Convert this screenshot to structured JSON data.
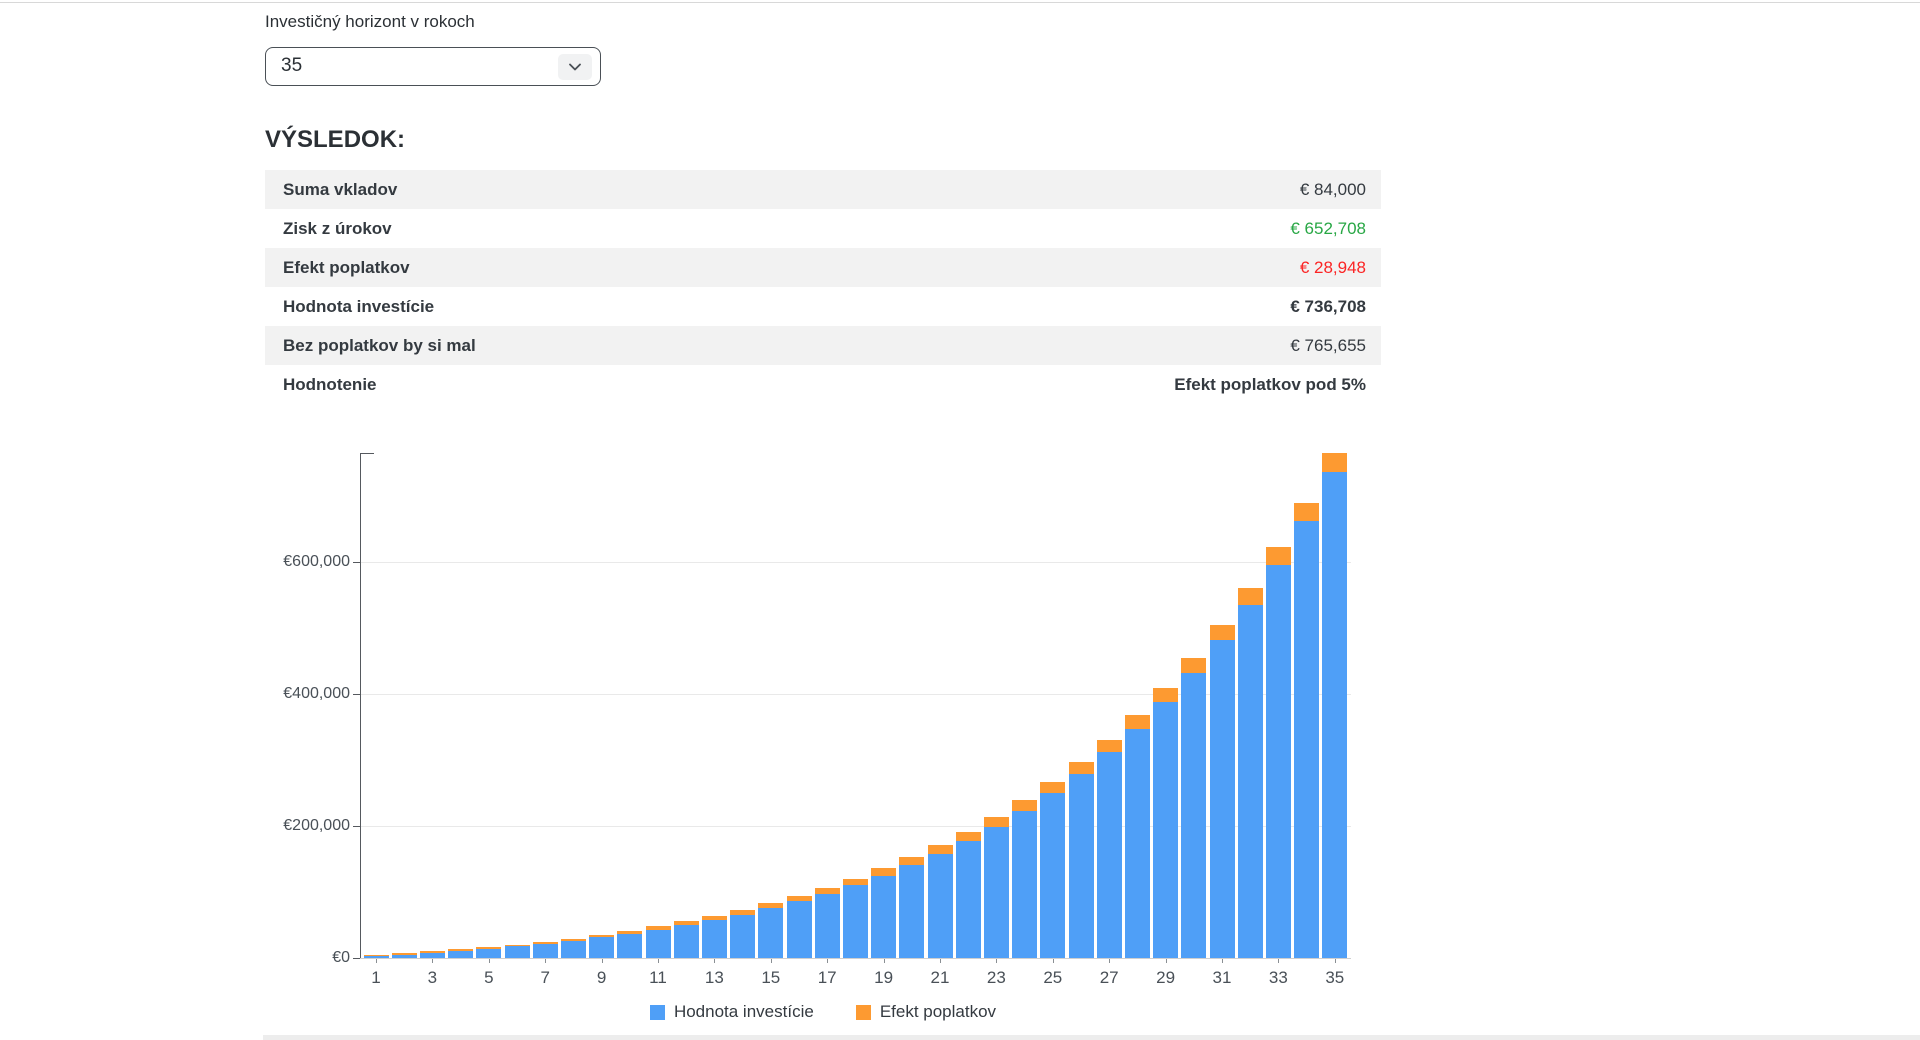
{
  "controls": {
    "horizon_label": "Investičný horizont v rokoch",
    "horizon_value": "35"
  },
  "result": {
    "heading": "VÝSLEDOK:",
    "rows": [
      {
        "label": "Suma vkladov",
        "value": "€ 84,000"
      },
      {
        "label": "Zisk z úrokov",
        "value": "€ 652,708"
      },
      {
        "label": "Efekt poplatkov",
        "value": "€ 28,948"
      },
      {
        "label": "Hodnota investície",
        "value": "€ 736,708"
      },
      {
        "label": "Bez poplatkov by si mal",
        "value": "€ 765,655"
      },
      {
        "label": "Hodnotenie",
        "value": "Efekt poplatkov pod 5%"
      }
    ]
  },
  "chart_data": {
    "type": "bar",
    "stacked": true,
    "x": [
      1,
      2,
      3,
      4,
      5,
      6,
      7,
      8,
      9,
      10,
      11,
      12,
      13,
      14,
      15,
      16,
      17,
      18,
      19,
      20,
      21,
      22,
      23,
      24,
      25,
      26,
      27,
      28,
      29,
      30,
      31,
      32,
      33,
      34,
      35
    ],
    "x_tick_labels": [
      "1",
      "3",
      "5",
      "7",
      "9",
      "11",
      "13",
      "15",
      "17",
      "19",
      "21",
      "23",
      "25",
      "27",
      "29",
      "31",
      "33",
      "35"
    ],
    "series": [
      {
        "name": "Hodnota investície",
        "color": "#4f9ff7",
        "values": [
          2396,
          4948,
          7719,
          10750,
          14085,
          17764,
          21833,
          26343,
          31345,
          36899,
          43065,
          49915,
          57524,
          65977,
          75369,
          85801,
          97385,
          110250,
          124531,
          140378,
          157963,
          177477,
          199113,
          223089,
          249694,
          279168,
          311829,
          348013,
          388091,
          432481,
          481645,
          536075,
          596310,
          662995,
          736708
        ]
      },
      {
        "name": "Efekt poplatkov",
        "color": "#fd9a31",
        "values": [
          117,
          343,
          642,
          1003,
          1417,
          1881,
          2389,
          2938,
          3526,
          4150,
          4811,
          5506,
          6233,
          6993,
          7783,
          8601,
          9449,
          10324,
          11226,
          12156,
          13110,
          14087,
          15093,
          16134,
          17176,
          18252,
          19352,
          20475,
          21622,
          22792,
          23973,
          25178,
          26419,
          27671,
          28947
        ]
      }
    ],
    "y_tick_values": [
      0,
      200000,
      400000,
      600000
    ],
    "y_tick_labels": [
      "€0",
      "€200,000",
      "€400,000",
      "€600,000"
    ],
    "ylim": [
      0,
      766000
    ],
    "xlabel": "",
    "ylabel": "",
    "title": "",
    "grid": true,
    "legend_position": "bottom"
  },
  "colors": {
    "bar_blue": "#4f9ff7",
    "bar_orange": "#fd9a31",
    "positive_green": "#28a745",
    "negative_red": "#fb2424",
    "row_stripe": "#f2f2f2"
  }
}
